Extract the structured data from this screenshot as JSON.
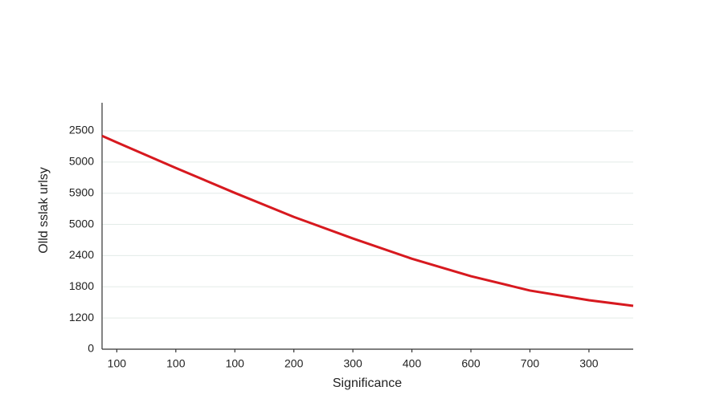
{
  "chart_data": {
    "type": "line",
    "x_label": "Significance",
    "y_label": "Olld sslak urlsy",
    "x": [
      -0.25,
      0,
      1,
      2,
      3,
      4,
      5,
      6,
      7,
      8,
      8.75
    ],
    "series": [
      {
        "name": "series",
        "color": "#d7191f",
        "values": [
          6.84,
          6.63,
          5.81,
          5.01,
          4.24,
          3.55,
          2.9,
          2.34,
          1.88,
          1.57,
          1.39
        ]
      }
    ],
    "xlim": [
      -0.25,
      8.75
    ],
    "xticks": [
      {
        "value": 0,
        "label": "100"
      },
      {
        "value": 1,
        "label": "100"
      },
      {
        "value": 2,
        "label": "100"
      },
      {
        "value": 3,
        "label": "200"
      },
      {
        "value": 4,
        "label": "300"
      },
      {
        "value": 5,
        "label": "400"
      },
      {
        "value": 6,
        "label": "600"
      },
      {
        "value": 7,
        "label": "700"
      },
      {
        "value": 8,
        "label": "300"
      }
    ],
    "ylim": [
      0,
      7.9
    ],
    "yticks": [
      0,
      {
        "value": 1,
        "label": "1200"
      },
      {
        "value": 2,
        "label": "1800"
      },
      {
        "value": 3,
        "label": "2400"
      },
      {
        "value": 4,
        "label": "5000"
      },
      {
        "value": 5,
        "label": "5900"
      },
      {
        "value": 6,
        "label": "5000"
      },
      {
        "value": 7,
        "label": "2500"
      }
    ],
    "grid": true
  }
}
